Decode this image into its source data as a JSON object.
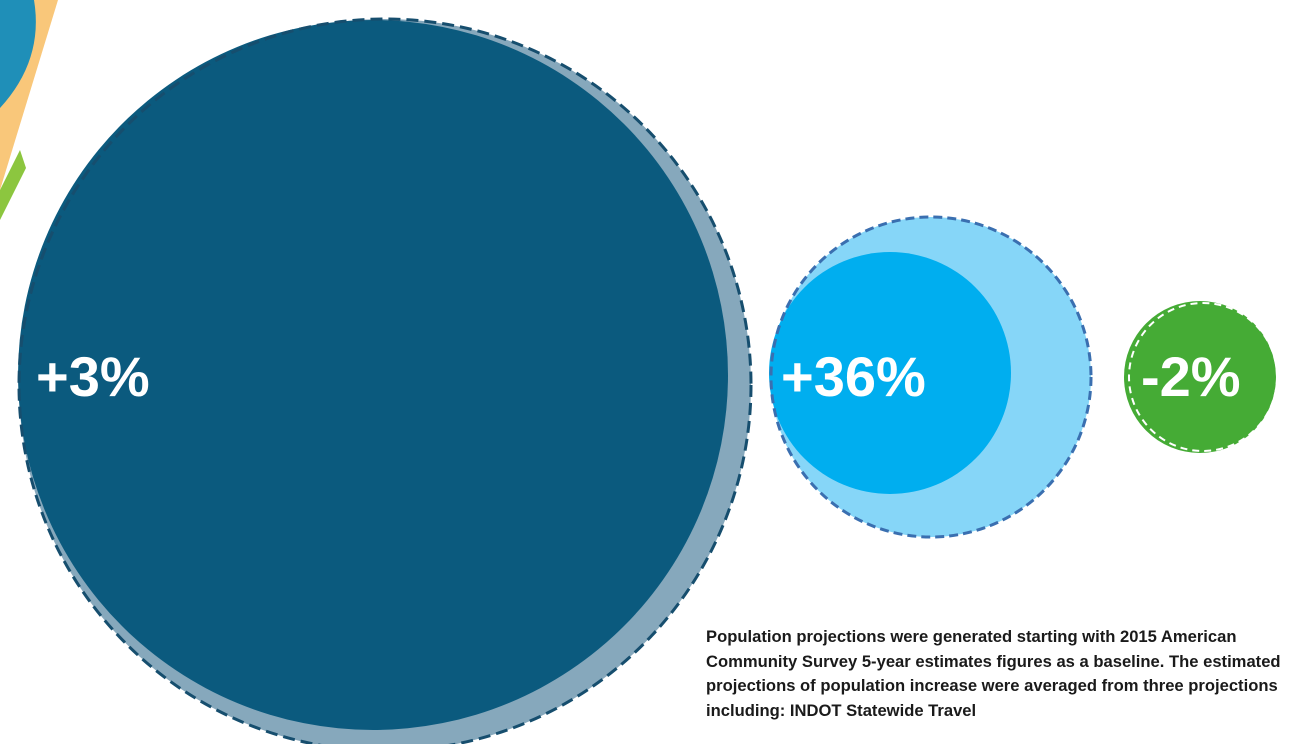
{
  "chart_data": {
    "type": "bubble",
    "series": [
      {
        "label": "+3%",
        "value": 3,
        "fill": "#0b5a7e",
        "halo": "#86a8bc",
        "stroke": "#164e6e"
      },
      {
        "label": "+36%",
        "value": 36,
        "fill": "#00aeef",
        "halo": "#86d6f8",
        "stroke": "#3a6fb0"
      },
      {
        "label": "-2%",
        "value": -2,
        "fill": "#45ab35",
        "halo": "#45ab35",
        "stroke": "#ffffff"
      }
    ]
  },
  "decor": {
    "colors": [
      "#f9c77a",
      "#1f8fb8",
      "#8cc63f"
    ]
  },
  "footnote": "Population projections were generated starting with 2015 American Community Survey 5-year estimates figures as a baseline. The estimated projections of population increase were averaged from three projections including: INDOT Statewide Travel"
}
